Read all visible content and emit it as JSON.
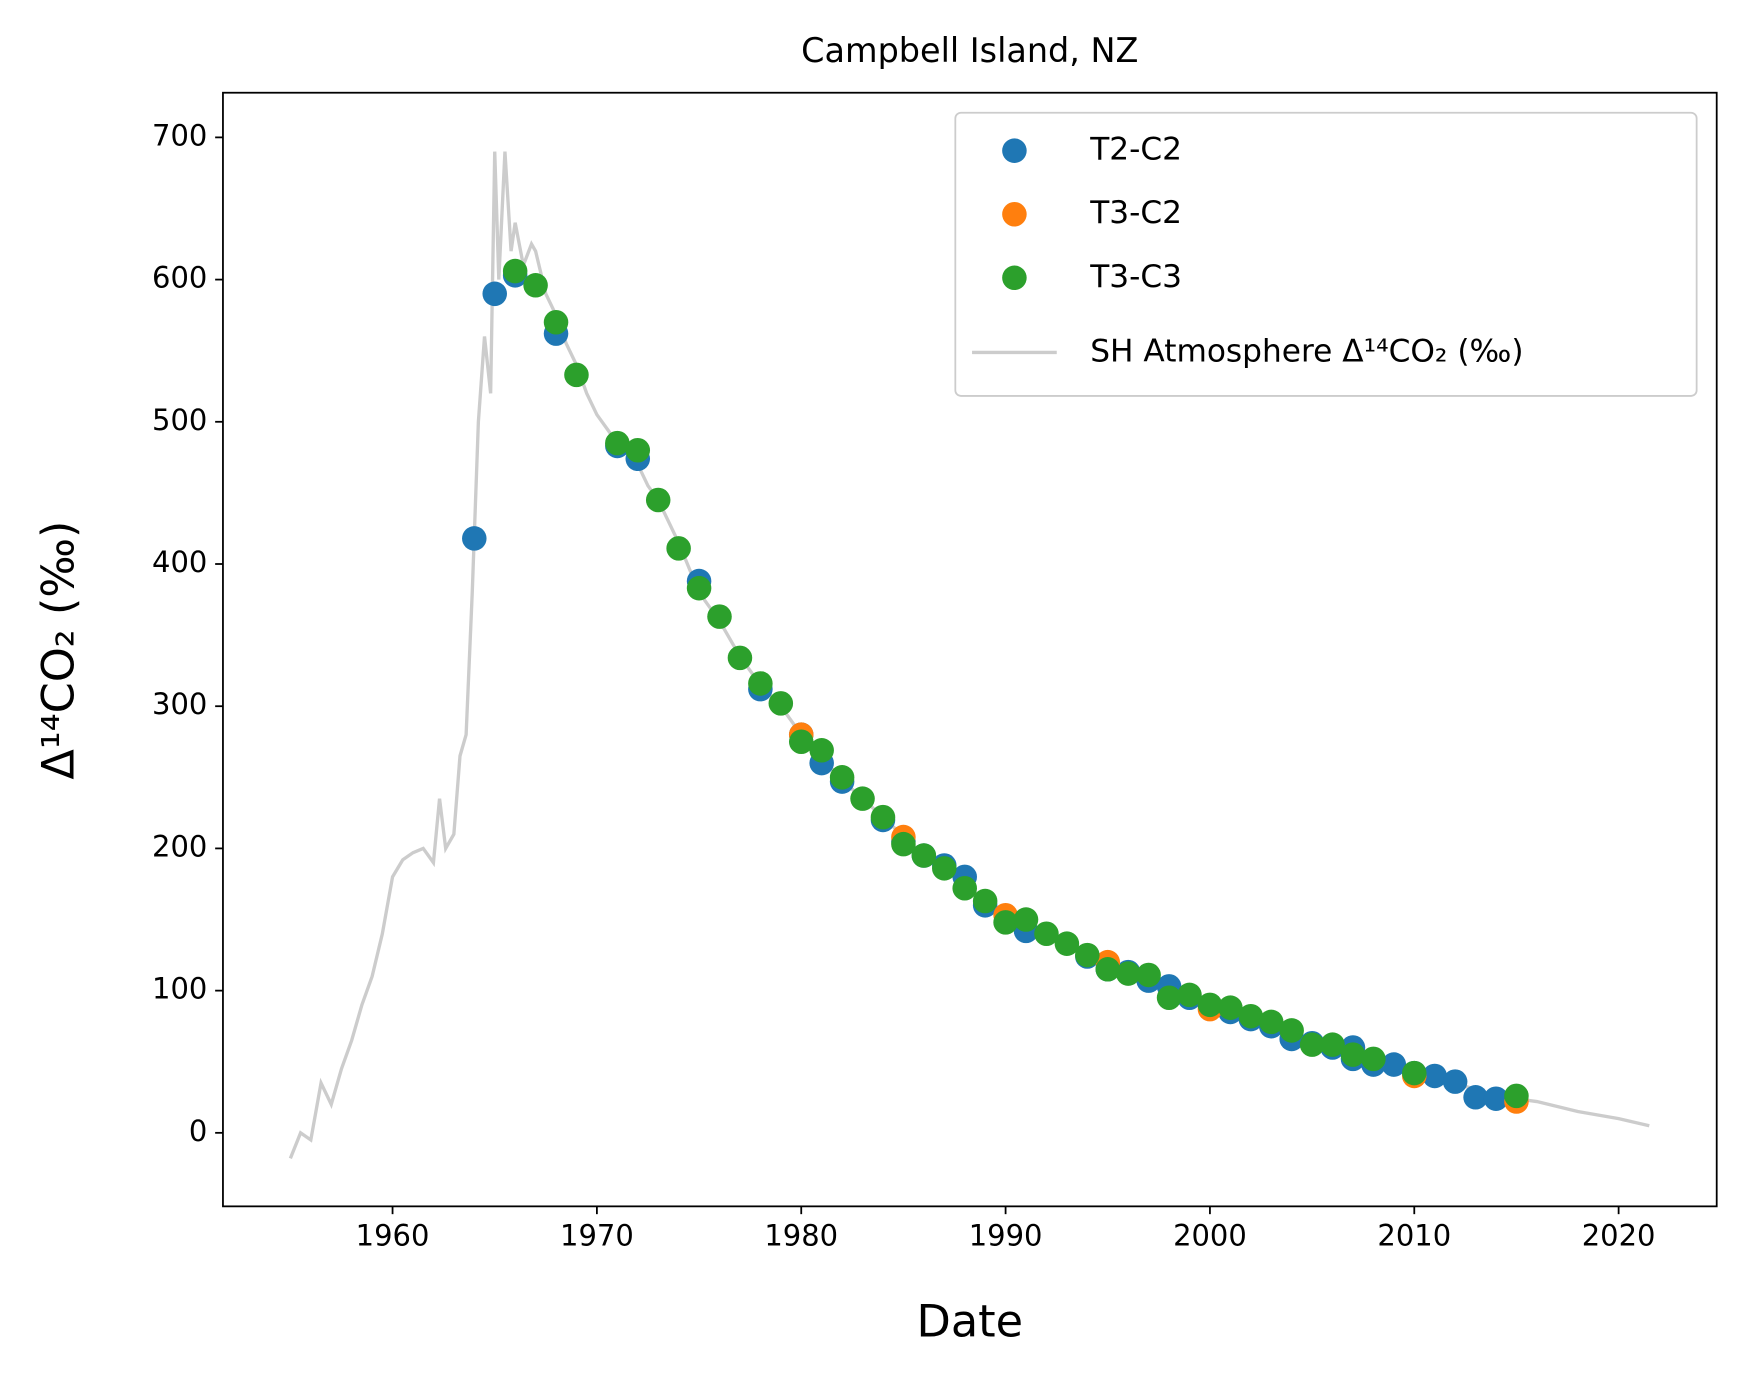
{
  "chart_data": {
    "type": "scatter",
    "title": "Campbell Island, NZ",
    "x_label": "Date",
    "y_label": "Δ¹⁴CO₂ (‰)",
    "xlim": [
      1951.7,
      2024.8
    ],
    "ylim": [
      -51.7,
      731.4
    ],
    "xticks": [
      1960,
      1970,
      1980,
      1990,
      2000,
      2010,
      2020
    ],
    "yticks": [
      0,
      100,
      200,
      300,
      400,
      500,
      600,
      700
    ],
    "legend": "upper right",
    "series": [
      {
        "name": "T2-C2",
        "color": "#1f77b4",
        "x": [
          1964,
          1965,
          1966,
          1968,
          1971,
          1972,
          1975,
          1978,
          1980,
          1981,
          1982,
          1984,
          1985,
          1986,
          1987,
          1988,
          1989,
          1991,
          1994,
          1995,
          1996,
          1997,
          1998,
          1999,
          2001,
          2002,
          2003,
          2004,
          2005,
          2006,
          2007,
          2007,
          2008,
          2009,
          2010,
          2011,
          2012,
          2013,
          2014
        ],
        "values": [
          418,
          590,
          603,
          562,
          483,
          474,
          388,
          312,
          280,
          260,
          247,
          220,
          205,
          195,
          188,
          180,
          160,
          142,
          124,
          115,
          113,
          107,
          103,
          95,
          85,
          80,
          75,
          66,
          63,
          60,
          60,
          52,
          48,
          48,
          42,
          40,
          36,
          25,
          24
        ]
      },
      {
        "name": "T3-C2",
        "color": "#ff7f0e",
        "x": [
          1980,
          1985,
          1990,
          1995,
          2000,
          2010,
          2015
        ],
        "values": [
          280,
          208,
          153,
          120,
          87,
          40,
          22
        ]
      },
      {
        "name": "T3-C3",
        "color": "#2ca02c",
        "x": [
          1966,
          1967,
          1968,
          1969,
          1971,
          1972,
          1973,
          1974,
          1975,
          1976,
          1977,
          1978,
          1979,
          1980,
          1981,
          1982,
          1983,
          1984,
          1985,
          1986,
          1987,
          1988,
          1989,
          1990,
          1991,
          1992,
          1993,
          1994,
          1995,
          1996,
          1997,
          1998,
          1999,
          2000,
          2001,
          2002,
          2003,
          2004,
          2005,
          2006,
          2007,
          2008,
          2010,
          2015
        ],
        "values": [
          606,
          596,
          570,
          533,
          485,
          480,
          445,
          411,
          383,
          363,
          334,
          316,
          302,
          275,
          269,
          250,
          235,
          222,
          203,
          195,
          186,
          172,
          163,
          148,
          150,
          140,
          133,
          125,
          115,
          112,
          111,
          95,
          97,
          90,
          88,
          82,
          78,
          72,
          62,
          62,
          55,
          52,
          42,
          26
        ]
      },
      {
        "name": "SH Atmosphere Δ¹⁴CO₂ (‰)",
        "color": "#cccccc",
        "kind": "line",
        "x": [
          1955,
          1955.5,
          1956,
          1956.5,
          1957,
          1957.5,
          1958,
          1958.5,
          1959,
          1959.5,
          1960,
          1960.5,
          1961,
          1961.5,
          1962,
          1962.3,
          1962.6,
          1963,
          1963.3,
          1963.6,
          1963.9,
          1964.2,
          1964.5,
          1964.8,
          1965,
          1965.2,
          1965.5,
          1965.8,
          1966,
          1966.4,
          1966.8,
          1967,
          1967.5,
          1968,
          1968.5,
          1969,
          1969.5,
          1970,
          1970.5,
          1971,
          1972,
          1972.5,
          1973,
          1974,
          1975,
          1975.5,
          1976,
          1977,
          1978,
          1979,
          1980,
          1982,
          1984,
          1986,
          1988,
          1990,
          1992,
          1994,
          1996,
          1998,
          2000,
          2002,
          2004,
          2006,
          2008,
          2010,
          2012,
          2014,
          2016,
          2018,
          2020,
          2021.5
        ],
        "values": [
          -18,
          0,
          -5,
          35,
          20,
          45,
          65,
          90,
          110,
          140,
          180,
          192,
          197,
          200,
          190,
          235,
          200,
          210,
          265,
          280,
          380,
          500,
          560,
          520,
          690,
          600,
          690,
          620,
          640,
          610,
          625,
          620,
          590,
          575,
          555,
          540,
          520,
          505,
          495,
          485,
          470,
          455,
          445,
          415,
          380,
          370,
          360,
          335,
          315,
          300,
          280,
          248,
          222,
          195,
          175,
          152,
          138,
          125,
          112,
          100,
          90,
          82,
          70,
          62,
          52,
          42,
          35,
          26,
          22,
          15,
          10,
          5
        ]
      }
    ]
  }
}
